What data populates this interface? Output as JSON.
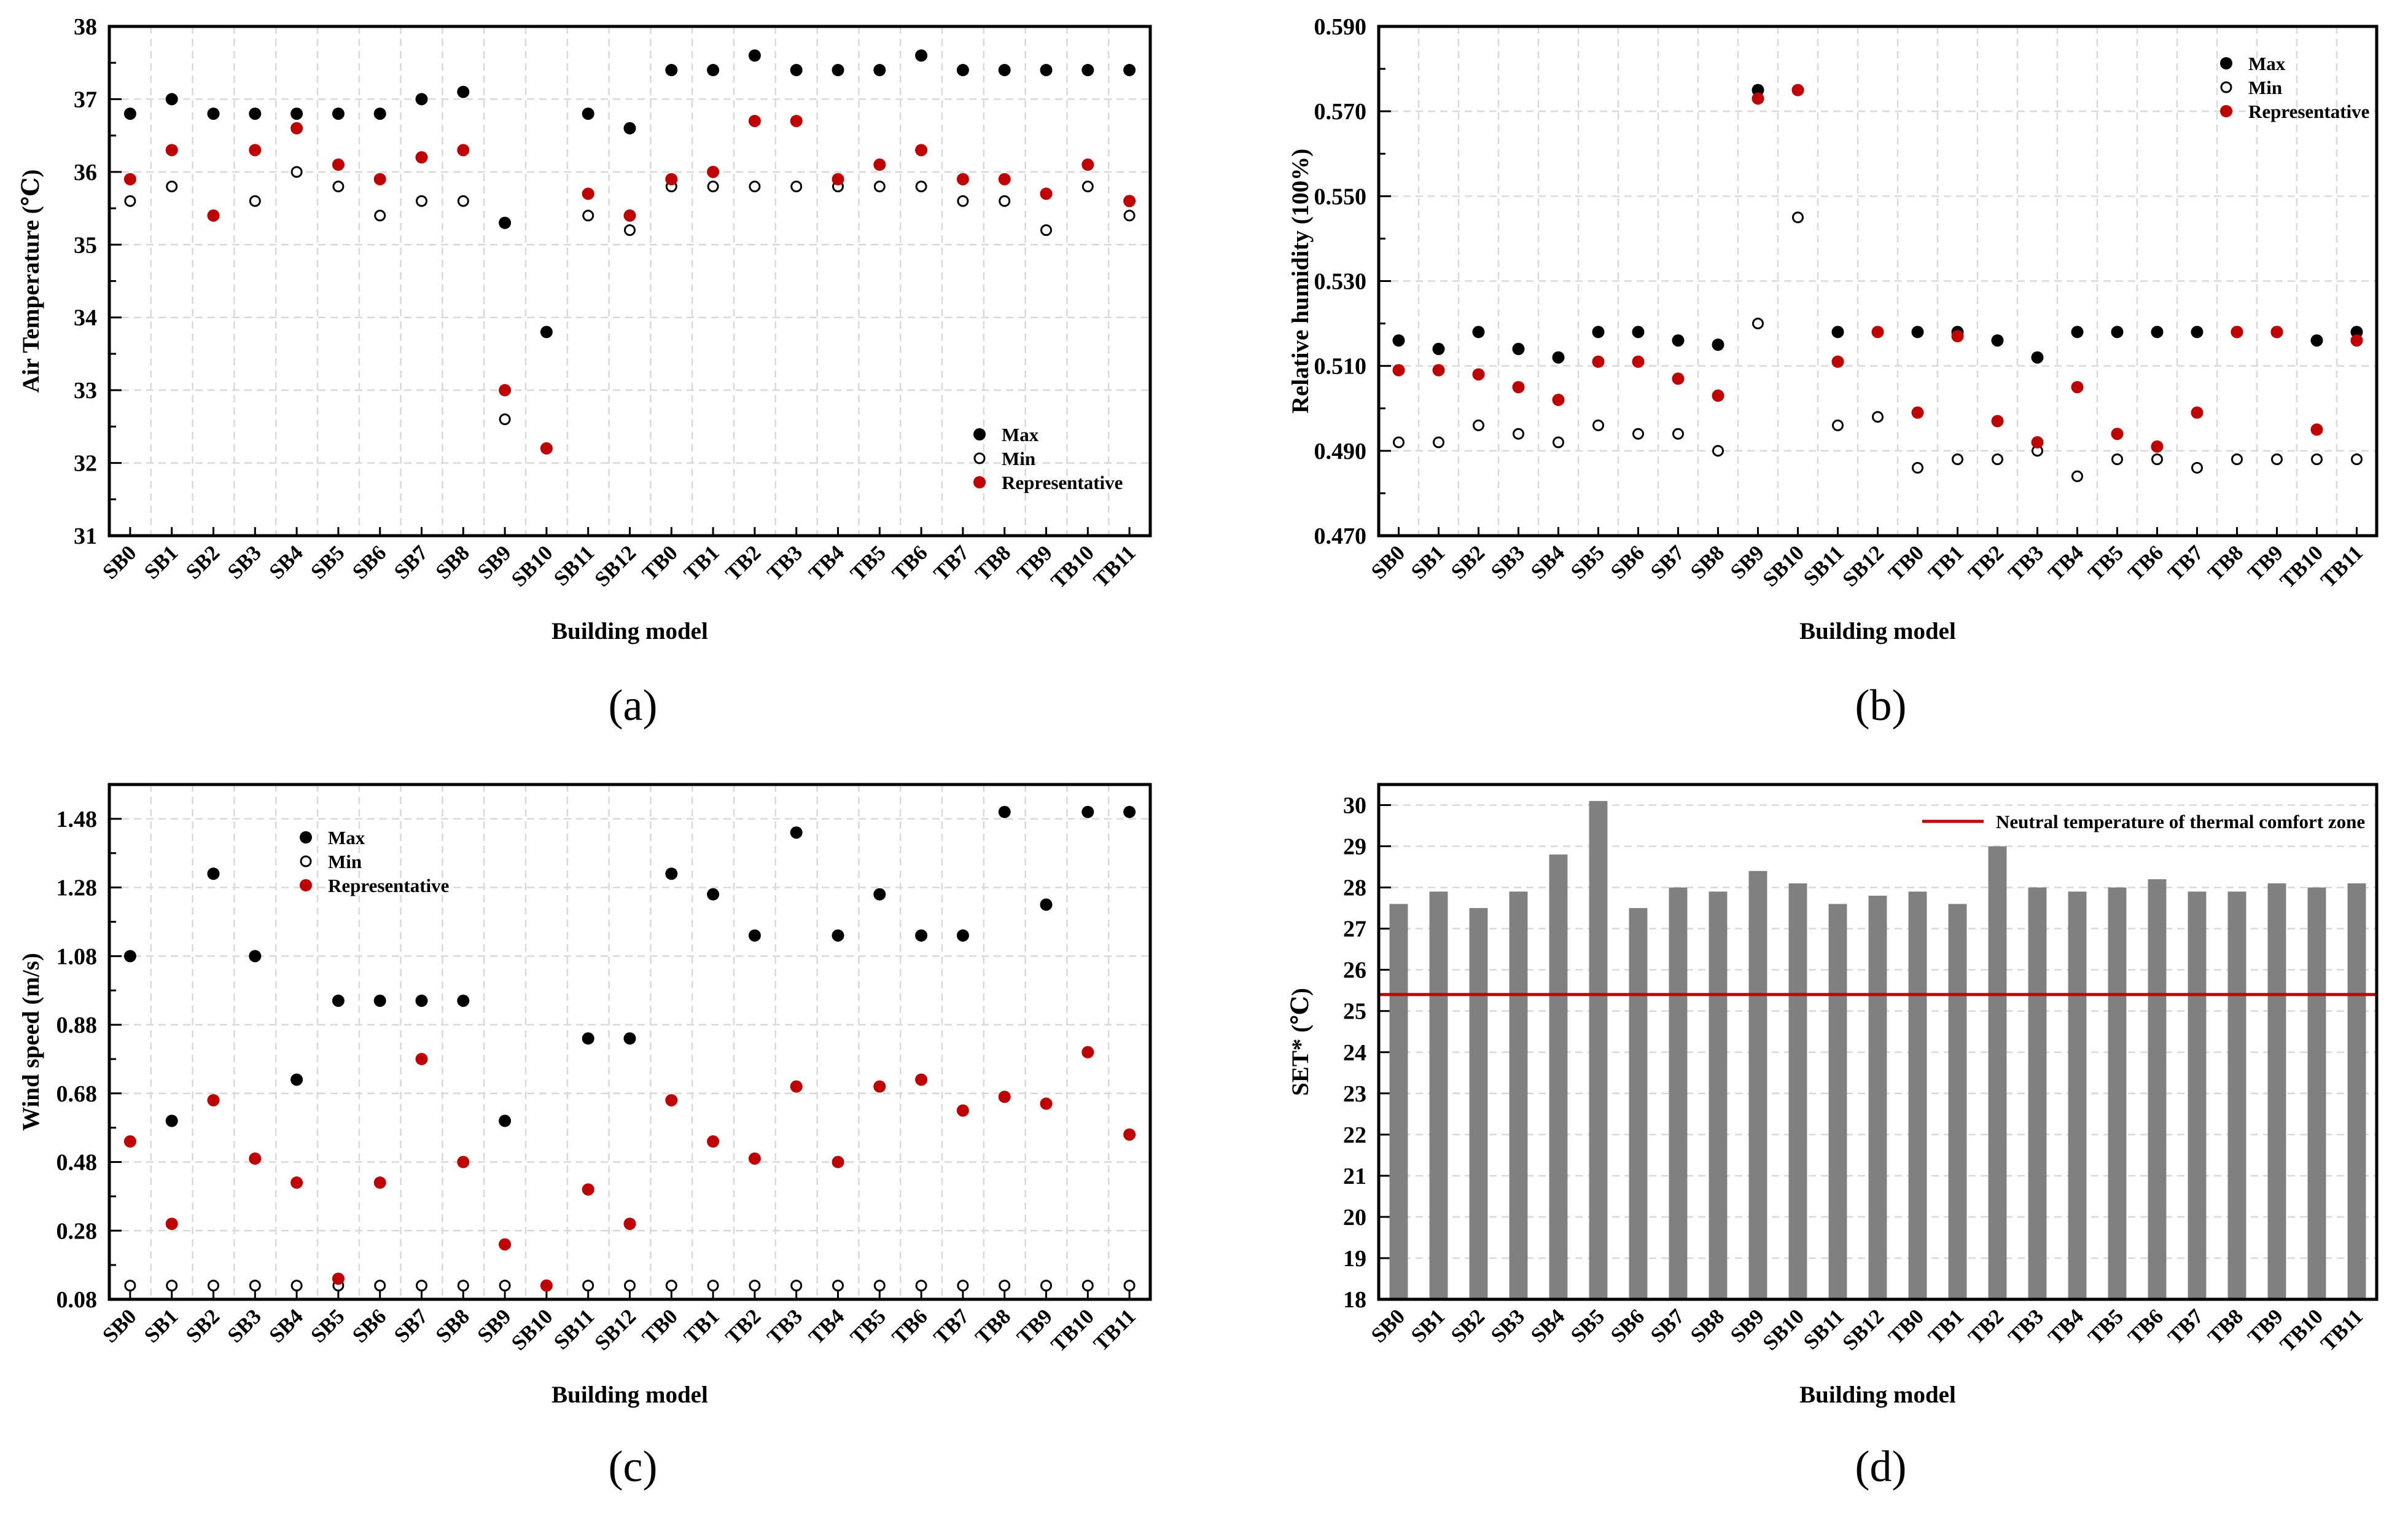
{
  "colors": {
    "max": "#000000",
    "min_fill": "#ffffff",
    "min_stroke": "#000000",
    "representative": "#c00000",
    "bar": "#808080",
    "neutral_line": "#c00000",
    "grid": "#d9d9d9"
  },
  "chart_data": [
    {
      "id": "a",
      "type": "scatter",
      "panel_label": "(a)",
      "xlabel": "Building model",
      "ylabel": "Air Temperature (℃)",
      "ylim": [
        31,
        38
      ],
      "yticks": [
        "31",
        "32",
        "33",
        "34",
        "35",
        "36",
        "37",
        "38"
      ],
      "legend_position": "bottom-right",
      "categories": [
        "SB0",
        "SB1",
        "SB2",
        "SB3",
        "SB4",
        "SB5",
        "SB6",
        "SB7",
        "SB8",
        "SB9",
        "SB10",
        "SB11",
        "SB12",
        "TB0",
        "TB1",
        "TB2",
        "TB3",
        "TB4",
        "TB5",
        "TB6",
        "TB7",
        "TB8",
        "TB9",
        "TB10",
        "TB11"
      ],
      "series": [
        {
          "name": "Max",
          "style": "max",
          "values": [
            36.8,
            37.0,
            36.8,
            36.8,
            36.8,
            36.8,
            36.8,
            37.0,
            37.1,
            35.3,
            33.8,
            36.8,
            36.6,
            37.4,
            37.4,
            37.6,
            37.4,
            37.4,
            37.4,
            37.6,
            37.4,
            37.4,
            37.4,
            37.4,
            37.4
          ]
        },
        {
          "name": "Min",
          "style": "min",
          "values": [
            35.6,
            35.8,
            35.4,
            35.6,
            36.0,
            35.8,
            35.4,
            35.6,
            35.6,
            32.6,
            32.2,
            35.4,
            35.2,
            35.8,
            35.8,
            35.8,
            35.8,
            35.8,
            35.8,
            35.8,
            35.6,
            35.6,
            35.2,
            35.8,
            35.4
          ]
        },
        {
          "name": "Representative",
          "style": "rep",
          "values": [
            35.9,
            36.3,
            35.4,
            36.3,
            36.6,
            36.1,
            35.9,
            36.2,
            36.3,
            33.0,
            32.2,
            35.7,
            35.4,
            35.9,
            36.0,
            36.7,
            36.7,
            35.9,
            36.1,
            36.3,
            35.9,
            35.9,
            35.7,
            36.1,
            35.6
          ]
        }
      ]
    },
    {
      "id": "b",
      "type": "scatter",
      "panel_label": "(b)",
      "xlabel": "Building model",
      "ylabel": "Relative humidity (100%)",
      "ylim": [
        0.47,
        0.59
      ],
      "yticks": [
        "0.470",
        "0.490",
        "0.510",
        "0.530",
        "0.550",
        "0.570",
        "0.590"
      ],
      "legend_position": "top-right",
      "categories": [
        "SB0",
        "SB1",
        "SB2",
        "SB3",
        "SB4",
        "SB5",
        "SB6",
        "SB7",
        "SB8",
        "SB9",
        "SB10",
        "SB11",
        "SB12",
        "TB0",
        "TB1",
        "TB2",
        "TB3",
        "TB4",
        "TB5",
        "TB6",
        "TB7",
        "TB8",
        "TB9",
        "TB10",
        "TB11"
      ],
      "series": [
        {
          "name": "Max",
          "style": "max",
          "values": [
            0.516,
            0.514,
            0.518,
            0.514,
            0.512,
            0.518,
            0.518,
            0.516,
            0.515,
            0.575,
            null,
            0.518,
            null,
            0.518,
            0.518,
            0.516,
            0.512,
            0.518,
            0.518,
            0.518,
            0.518,
            0.518,
            0.518,
            0.516,
            0.518
          ]
        },
        {
          "name": "Min",
          "style": "min",
          "values": [
            0.492,
            0.492,
            0.496,
            0.494,
            0.492,
            0.496,
            0.494,
            0.494,
            0.49,
            0.52,
            0.545,
            0.496,
            0.498,
            0.486,
            0.488,
            0.488,
            0.49,
            0.484,
            0.488,
            0.488,
            0.486,
            0.488,
            0.488,
            0.488,
            0.488
          ]
        },
        {
          "name": "Representative",
          "style": "rep",
          "values": [
            0.509,
            0.509,
            0.508,
            0.505,
            0.502,
            0.511,
            0.511,
            0.507,
            0.503,
            0.573,
            0.575,
            0.511,
            0.518,
            0.499,
            0.517,
            0.497,
            0.492,
            0.505,
            0.494,
            0.491,
            0.499,
            0.518,
            0.518,
            0.495,
            0.516
          ]
        }
      ]
    },
    {
      "id": "c",
      "type": "scatter",
      "panel_label": "(c)",
      "xlabel": "Building model",
      "ylabel": "Wind speed (m/s)",
      "ylim": [
        0.08,
        1.58
      ],
      "yticks": [
        "0.08",
        "0.28",
        "0.48",
        "0.68",
        "0.88",
        "1.08",
        "1.28",
        "1.48"
      ],
      "legend_position": "top-left",
      "categories": [
        "SB0",
        "SB1",
        "SB2",
        "SB3",
        "SB4",
        "SB5",
        "SB6",
        "SB7",
        "SB8",
        "SB9",
        "SB10",
        "SB11",
        "SB12",
        "TB0",
        "TB1",
        "TB2",
        "TB3",
        "TB4",
        "TB5",
        "TB6",
        "TB7",
        "TB8",
        "TB9",
        "TB10",
        "TB11"
      ],
      "series": [
        {
          "name": "Max",
          "style": "max",
          "values": [
            1.08,
            0.6,
            1.32,
            1.08,
            0.72,
            0.95,
            0.95,
            0.95,
            0.95,
            0.6,
            null,
            0.84,
            0.84,
            1.32,
            1.26,
            1.14,
            1.44,
            1.14,
            1.26,
            1.14,
            1.14,
            1.5,
            1.23,
            1.5,
            1.5
          ]
        },
        {
          "name": "Min",
          "style": "min",
          "values": [
            0.12,
            0.12,
            0.12,
            0.12,
            0.12,
            0.12,
            0.12,
            0.12,
            0.12,
            0.12,
            0.12,
            0.12,
            0.12,
            0.12,
            0.12,
            0.12,
            0.12,
            0.12,
            0.12,
            0.12,
            0.12,
            0.12,
            0.12,
            0.12,
            0.12
          ]
        },
        {
          "name": "Representative",
          "style": "rep",
          "values": [
            0.54,
            0.3,
            0.66,
            0.49,
            0.42,
            0.14,
            0.42,
            0.78,
            0.48,
            0.24,
            0.12,
            0.4,
            0.3,
            0.66,
            0.54,
            0.49,
            0.7,
            0.48,
            0.7,
            0.72,
            0.63,
            0.67,
            0.65,
            0.8,
            0.56
          ]
        }
      ]
    },
    {
      "id": "d",
      "type": "bar",
      "panel_label": "(d)",
      "xlabel": "Building model",
      "ylabel": "SET* (℃)",
      "ylim": [
        18,
        30.5
      ],
      "yticks": [
        "18",
        "19",
        "20",
        "21",
        "22",
        "23",
        "24",
        "25",
        "26",
        "27",
        "28",
        "29",
        "30"
      ],
      "legend_position": "top-right",
      "categories": [
        "SB0",
        "SB1",
        "SB2",
        "SB3",
        "SB4",
        "SB5",
        "SB6",
        "SB7",
        "SB8",
        "SB9",
        "SB10",
        "SB11",
        "SB12",
        "TB0",
        "TB1",
        "TB2",
        "TB3",
        "TB4",
        "TB5",
        "TB6",
        "TB7",
        "TB8",
        "TB9",
        "TB10",
        "TB11"
      ],
      "values": [
        27.6,
        27.9,
        27.5,
        27.9,
        28.8,
        30.1,
        27.5,
        28.0,
        27.9,
        28.4,
        28.1,
        27.6,
        27.8,
        27.9,
        27.6,
        29.0,
        28.0,
        27.9,
        28.0,
        28.2,
        27.9,
        27.9,
        28.1,
        28.0,
        28.1
      ],
      "reference_line": {
        "name": "Neutral temperature of thermal comfort zone",
        "value": 25.4
      }
    }
  ]
}
